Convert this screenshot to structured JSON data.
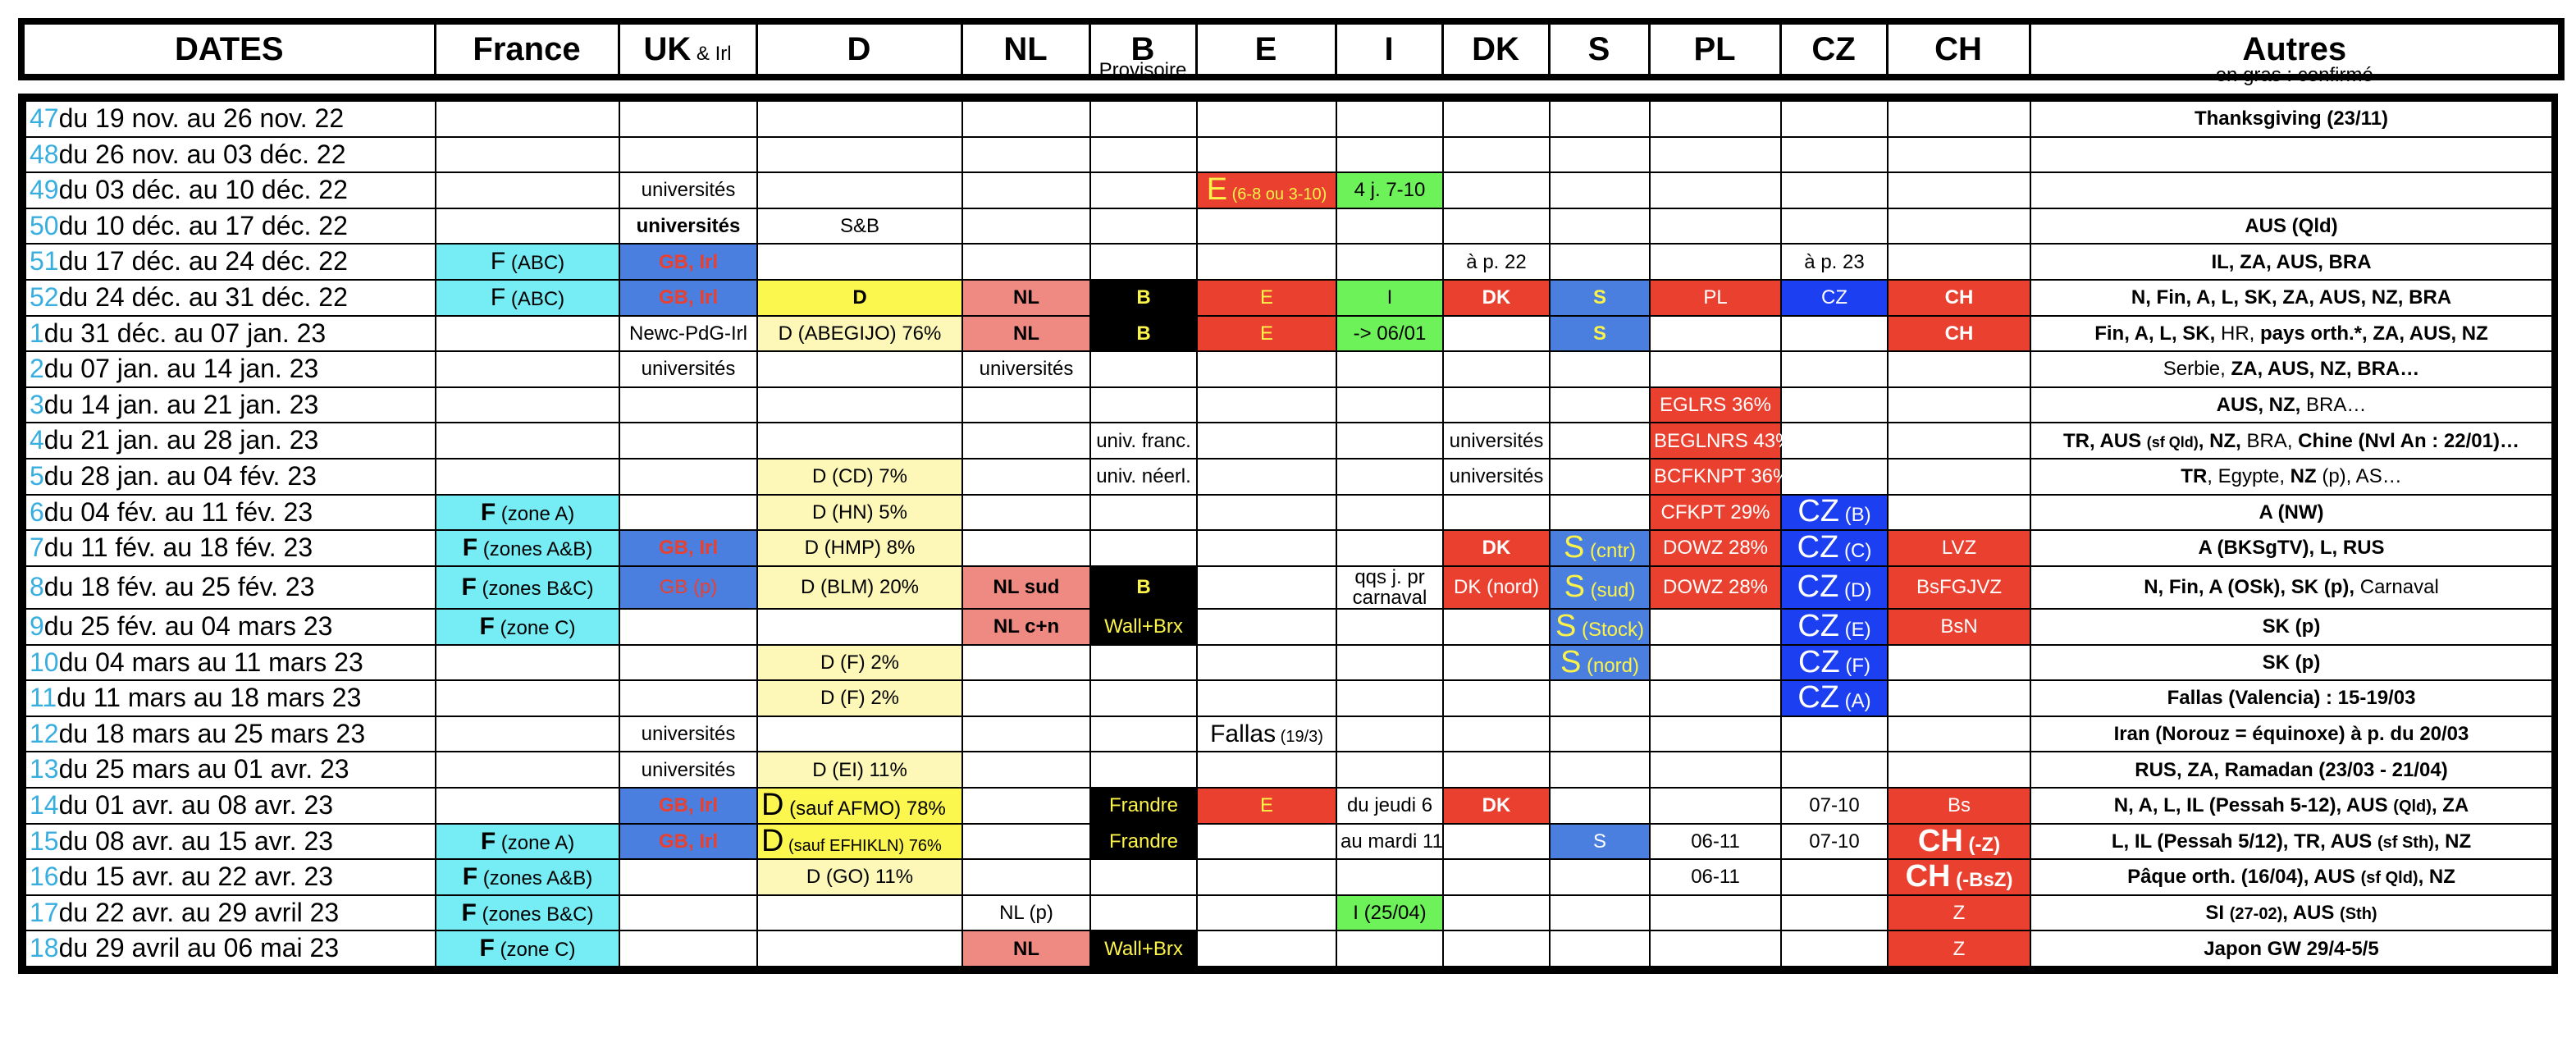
{
  "header": {
    "dates": "DATES",
    "france": "France",
    "uk_big": "UK",
    "uk_small": " & Irl",
    "d": "D",
    "nl": "NL",
    "b": "B",
    "b_note": "Provisoire",
    "e": "E",
    "i": "I",
    "dk": "DK",
    "s": "S",
    "pl": "PL",
    "cz": "CZ",
    "ch": "CH",
    "autres": "Autres",
    "autres_note": "en gras : confirmé"
  },
  "rows": [
    {
      "wk": "47",
      "date": "du 19 nov. au 26 nov. 22",
      "autres": "Thanksgiving (23/11)"
    },
    {
      "wk": "48",
      "date": "du 26 nov. au 03 déc. 22"
    },
    {
      "wk": "49",
      "date": "du 03 déc. au 10 déc. 22",
      "uk": "universités",
      "e_big": "E",
      "e_small": " (6-8 ou 3-10)",
      "i": "4 j. 7-10"
    },
    {
      "wk": "50",
      "date": "du 10 déc. au 17 déc. 22",
      "uk": "universités",
      "d": "S&B",
      "autres": "AUS (Qld)"
    },
    {
      "wk": "51",
      "date": "du 17 déc. au 24 déc. 22",
      "fr_big": "F",
      "fr_small": " (ABC)",
      "uk": "GB, Irl",
      "dk": "à p. 22",
      "cz": "à p. 23",
      "autres": "IL, ZA, AUS, BRA"
    },
    {
      "wk": "52",
      "date": "du 24 déc. au 31 déc. 22",
      "fr_big": "F",
      "fr_small": " (ABC)",
      "uk": "GB, Irl",
      "d": "D",
      "nl": "NL",
      "b": "B",
      "e": "E",
      "i": "I",
      "dk": "DK",
      "s": "S",
      "pl": "PL",
      "cz": "CZ",
      "ch": "CH",
      "autres": "N, Fin, A, L, SK, ZA, AUS, NZ, BRA"
    },
    {
      "wk": "1",
      "date": "du 31 déc. au 07 jan. 23",
      "uk": "Newc-PdG-Irl",
      "d": "D (ABEGIJO) 76%",
      "nl": "NL",
      "b": "B",
      "e": "E",
      "i": "-> 06/01",
      "s": "S",
      "ch": "CH",
      "autres": "Fin, A, L, SK, HR, pays orth.*, ZA, AUS, NZ"
    },
    {
      "wk": "2",
      "date": "du 07 jan. au 14 jan. 23",
      "uk": "universités",
      "nl": "universités",
      "autres": "Serbie, ZA, AUS, NZ, BRA…"
    },
    {
      "wk": "3",
      "date": "du 14 jan. au 21 jan. 23",
      "pl": "EGLRS 36%",
      "autres": "AUS, NZ, BRA…"
    },
    {
      "wk": "4",
      "date": "du 21 jan. au 28 jan. 23",
      "b": "univ. franc.",
      "dk": "universités",
      "pl": "BEGLNRS 43%",
      "autres": "TR, AUS (sf Qld), NZ, BRA, Chine (Nvl An : 22/01)…"
    },
    {
      "wk": "5",
      "date": "du 28 jan. au 04 fév. 23",
      "d": "D (CD) 7%",
      "b": "univ. néerl.",
      "dk": "universités",
      "pl": "BCFKNPT 36%",
      "autres": "TR, Egypte, NZ (p), AS…"
    },
    {
      "wk": "6",
      "date": "du 04 fév. au 11 fév. 23",
      "fr_big": "F",
      "fr_small": " (zone A)",
      "d": "D (HN) 5%",
      "pl": "CFKPT 29%",
      "cz_big": "CZ",
      "cz_small": " (B)",
      "autres": "A (NW)"
    },
    {
      "wk": "7",
      "date": "du 11 fév. au 18 fév. 23",
      "fr_big": "F",
      "fr_small": " (zones A&B)",
      "uk": "GB, Irl",
      "d": "D (HMP) 8%",
      "dk": "DK",
      "s_big": "S",
      "s_small": " (cntr)",
      "pl": "DOWZ 28%",
      "cz_big": "CZ",
      "cz_small": " (C)",
      "ch": "LVZ",
      "autres": "A (BKSgTV), L, RUS"
    },
    {
      "wk": "8",
      "date": "du 18 fév. au 25 fév. 23",
      "fr_big": "F",
      "fr_small": " (zones B&C)",
      "uk": "GB (p)",
      "d": "D (BLM) 20%",
      "nl": "NL sud",
      "b": "B",
      "i1": "qqs j. pr",
      "i2": "carnaval",
      "dk": "DK (nord)",
      "s_big": "S",
      "s_small": " (sud)",
      "pl": "DOWZ 28%",
      "cz_big": "CZ",
      "cz_small": " (D)",
      "ch": "BsFGJVZ",
      "autres": "N, Fin, A (OSk), SK (p), Carnaval"
    },
    {
      "wk": "9",
      "date": "du 25 fév. au 04 mars 23",
      "fr_big": "F",
      "fr_small": " (zone C)",
      "nl": "NL c+n",
      "b": "Wall+Brx",
      "s_big": "S",
      "s_small": " (Stock)",
      "cz_big": "CZ",
      "cz_small": " (E)",
      "ch": "BsN",
      "autres": "SK (p)"
    },
    {
      "wk": "10",
      "date": "du 04 mars au 11 mars 23",
      "d": "D (F) 2%",
      "s_big": "S",
      "s_small": " (nord)",
      "cz_big": "CZ",
      "cz_small": " (F)",
      "autres": "SK (p)"
    },
    {
      "wk": "11",
      "date": "du 11 mars au 18 mars 23",
      "d": "D (F) 2%",
      "cz_big": "CZ",
      "cz_small": " (A)",
      "autres": "Fallas (Valencia) : 15-19/03"
    },
    {
      "wk": "12",
      "date": "du 18 mars au 25 mars 23",
      "uk": "universités",
      "e_big": "Fallas",
      "e_small": " (19/3)",
      "autres": "Iran (Norouz = équinoxe) à p. du 20/03"
    },
    {
      "wk": "13",
      "date": "du 25 mars au 01 avr. 23",
      "uk": "universités",
      "d": "D (EI) 11%",
      "autres": "RUS, ZA, Ramadan (23/03 - 21/04)"
    },
    {
      "wk": "14",
      "date": "du 01 avr. au 08 avr. 23",
      "uk": "GB, Irl",
      "d_big": "D",
      "d_small": " (sauf AFMO) 78%",
      "b": "Frandre",
      "e": "E",
      "i": "du jeudi 6",
      "dk": "DK",
      "cz": "07-10",
      "ch": "Bs",
      "autres": "N, A, L, IL (Pessah 5-12), AUS (Qld), ZA"
    },
    {
      "wk": "15",
      "date": "du 08 avr. au 15 avr. 23",
      "fr_big": "F",
      "fr_small": " (zone A)",
      "uk": "GB, Irl",
      "d_big": "D",
      "d_small": " (sauf EFHIKLN) 76%",
      "b": "Frandre",
      "i": "au mardi 11",
      "s": "S",
      "pl": "06-11",
      "cz": "07-10",
      "ch_big": "CH",
      "ch_small": " (-Z)",
      "autres": "L, IL (Pessah 5/12), TR, AUS (sf Sth), NZ"
    },
    {
      "wk": "16",
      "date": "du 15 avr. au 22 avr. 23",
      "fr_big": "F",
      "fr_small": " (zones A&B)",
      "d": "D (GO) 11%",
      "pl": "06-11",
      "ch_big": "CH",
      "ch_small": " (-BsZ)",
      "autres": "Pâque orth. (16/04), AUS (sf Qld), NZ"
    },
    {
      "wk": "17",
      "date": "du 22 avr. au 29 avril 23",
      "fr_big": "F",
      "fr_small": " (zones B&C)",
      "nl": "NL (p)",
      "i": "I (25/04)",
      "ch": "Z",
      "autres": "SI (27-02), AUS (Sth)"
    },
    {
      "wk": "18",
      "date": "du 29 avril au 06 mai 23",
      "fr_big": "F",
      "fr_small": " (zone C)",
      "nl": "NL",
      "b": "Wall+Brx",
      "ch": "Z",
      "autres": "Japon GW 29/4-5/5"
    }
  ],
  "colors": {
    "france": "#76ecf4",
    "uk": "#4a7fe0",
    "red": "#e9402f",
    "pl": "#e9402f",
    "cz": "#1d3ff2",
    "nl": "#ef8a83",
    "b": "#000000",
    "d_light": "#fdf8b7",
    "d_strong": "#fcf74e",
    "i": "#6ef25a",
    "week_num": "#38aee0"
  }
}
